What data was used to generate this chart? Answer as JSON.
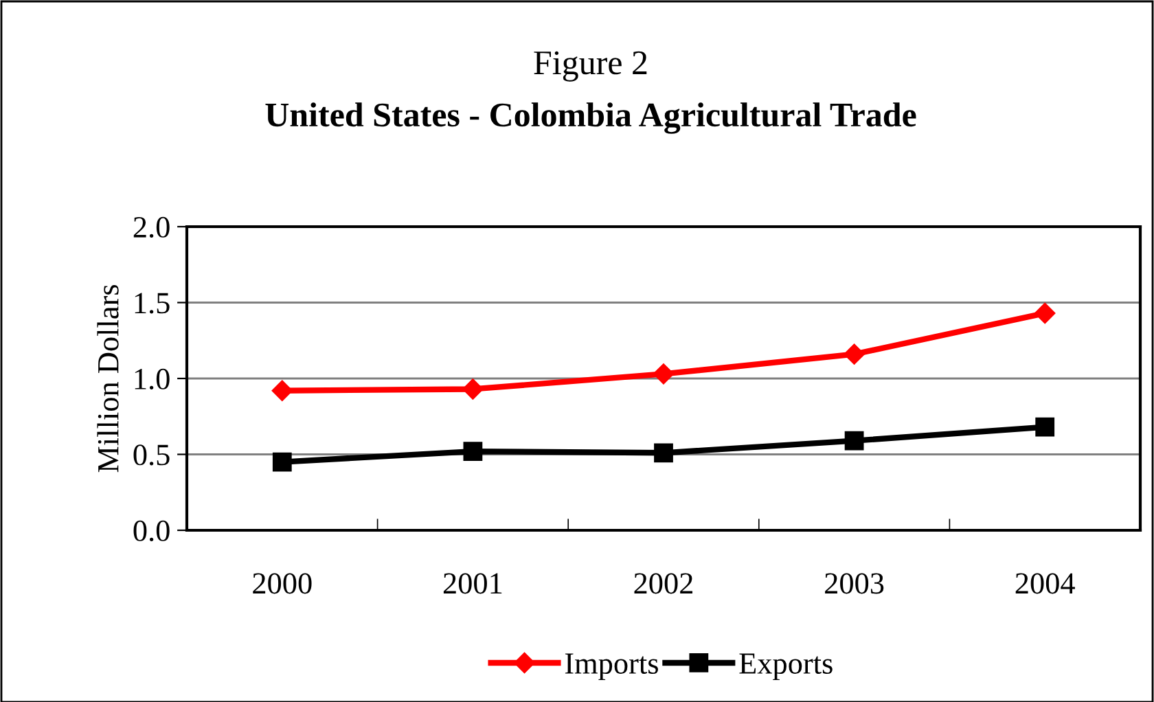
{
  "chart_data": {
    "type": "line",
    "title": "Figure 2",
    "subtitle": "United States - Colombia Agricultural Trade",
    "ylabel": "Million Dollars",
    "categories": [
      "2000",
      "2001",
      "2002",
      "2003",
      "2004"
    ],
    "series": [
      {
        "name": "Imports",
        "color": "#ff0000",
        "marker": "diamond",
        "values": [
          0.92,
          0.93,
          1.03,
          1.16,
          1.43
        ]
      },
      {
        "name": "Exports",
        "color": "#000000",
        "marker": "square",
        "values": [
          0.45,
          0.52,
          0.51,
          0.59,
          0.68
        ]
      }
    ],
    "ylim": [
      0,
      2.0
    ],
    "yticks": [
      {
        "value": 0,
        "label": "0.0"
      },
      {
        "value": 0.5,
        "label": "0.5"
      },
      {
        "value": 1.0,
        "label": "1.0"
      },
      {
        "value": 1.5,
        "label": "1.5"
      },
      {
        "value": 2.0,
        "label": "2.0"
      }
    ],
    "grid": "y",
    "legend": "bottom",
    "line_style": "solid"
  }
}
